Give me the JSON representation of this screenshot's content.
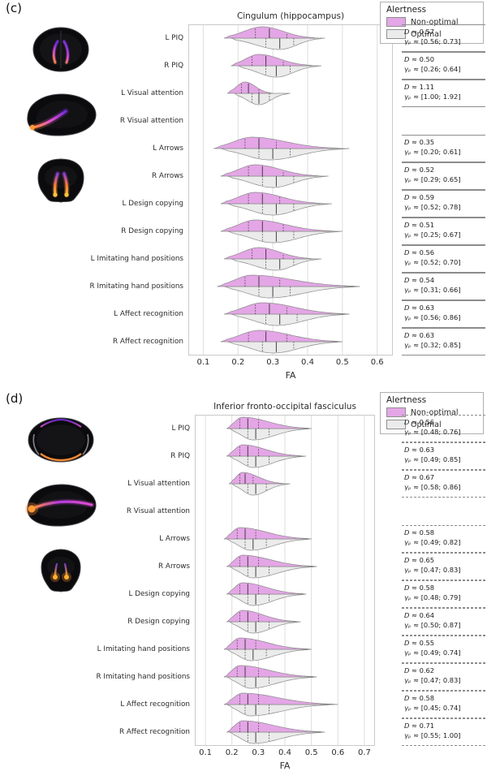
{
  "legend": {
    "title": "Alertness",
    "nonoptimal_label": "Non-optimal",
    "optimal_label": "Optimal"
  },
  "colors": {
    "nonoptimal": "#e4a6e6",
    "optimal": "#ebebeb",
    "violin_edge": "#8a8a8a",
    "grid": "#dedede",
    "tract_orange": "#ff8f35",
    "tract_purple": "#6f2bd8"
  },
  "violin_format": "[min, q1, median, q3, max, mode] in FA units",
  "chart_data": [
    {
      "type": "violin-split",
      "id": "c",
      "panel_label": "(c)",
      "title": "Cingulum (hippocampus)",
      "xlabel": "FA",
      "xlim": [
        0.057,
        0.645
      ],
      "xticks": [
        0.1,
        0.2,
        0.3,
        0.4,
        0.5,
        0.6
      ],
      "brain_views": [
        "axial",
        "sagittal",
        "coronal"
      ],
      "categories": [
        "L PIQ",
        "R PIQ",
        "L Visual attention",
        "R Visual attention",
        "L Arrows",
        "R Arrows",
        "L Design copying",
        "R Design copying",
        "L Imitating hand positions",
        "R Imitating hand positions",
        "L Affect recognition",
        "R Affect recognition"
      ],
      "series": [
        {
          "name": "Non-optimal",
          "violins": [
            [
              0.16,
              0.25,
              0.29,
              0.34,
              0.43,
              0.27
            ],
            [
              0.18,
              0.24,
              0.28,
              0.33,
              0.42,
              0.26
            ],
            [
              0.17,
              0.21,
              0.23,
              0.26,
              0.3,
              0.22
            ],
            null,
            [
              0.13,
              0.22,
              0.26,
              0.31,
              0.5,
              0.24
            ],
            [
              0.15,
              0.23,
              0.27,
              0.33,
              0.44,
              0.25
            ],
            [
              0.15,
              0.23,
              0.27,
              0.32,
              0.45,
              0.25
            ],
            [
              0.15,
              0.23,
              0.27,
              0.33,
              0.48,
              0.25
            ],
            [
              0.16,
              0.24,
              0.28,
              0.33,
              0.42,
              0.26
            ],
            [
              0.14,
              0.22,
              0.26,
              0.32,
              0.55,
              0.24
            ],
            [
              0.16,
              0.25,
              0.29,
              0.34,
              0.52,
              0.27
            ],
            [
              0.15,
              0.23,
              0.28,
              0.34,
              0.5,
              0.26
            ]
          ]
        },
        {
          "name": "Optimal",
          "violins": [
            [
              0.18,
              0.28,
              0.32,
              0.36,
              0.45,
              0.32
            ],
            [
              0.2,
              0.28,
              0.31,
              0.35,
              0.44,
              0.31
            ],
            [
              0.19,
              0.24,
              0.26,
              0.29,
              0.35,
              0.26
            ],
            null,
            [
              0.15,
              0.26,
              0.3,
              0.35,
              0.52,
              0.29
            ],
            [
              0.17,
              0.27,
              0.31,
              0.36,
              0.46,
              0.3
            ],
            [
              0.17,
              0.27,
              0.31,
              0.36,
              0.47,
              0.3
            ],
            [
              0.17,
              0.27,
              0.31,
              0.36,
              0.5,
              0.3
            ],
            [
              0.18,
              0.28,
              0.32,
              0.36,
              0.44,
              0.31
            ],
            [
              0.16,
              0.26,
              0.3,
              0.35,
              0.55,
              0.29
            ],
            [
              0.18,
              0.28,
              0.32,
              0.37,
              0.52,
              0.31
            ],
            [
              0.17,
              0.27,
              0.31,
              0.36,
              0.5,
              0.3
            ]
          ]
        }
      ],
      "stats": [
        {
          "d": "D ≈ 0.57",
          "gp": "γₚ ≈ [0.56; 0.73]"
        },
        {
          "d": "D ≈ 0.50",
          "gp": "γₚ ≈ [0.26; 0.64]"
        },
        {
          "d": "D ≈ 1.11",
          "gp": "γₚ ≈ [1.00; 1.92]"
        },
        null,
        {
          "d": "D ≈ 0.35",
          "gp": "γₚ ≈ [0.20; 0.61]"
        },
        {
          "d": "D ≈ 0.52",
          "gp": "γₚ ≈ [0.29; 0.65]"
        },
        {
          "d": "D ≈ 0.59",
          "gp": "γₚ ≈ [0.52; 0.78]"
        },
        {
          "d": "D ≈ 0.51",
          "gp": "γₚ ≈ [0.25; 0.67]"
        },
        {
          "d": "D ≈ 0.56",
          "gp": "γₚ ≈ [0.52; 0.70]"
        },
        {
          "d": "D ≈ 0.54",
          "gp": "γₚ ≈ [0.31; 0.66]"
        },
        {
          "d": "D ≈ 0.63",
          "gp": "γₚ ≈ [0.56; 0.86]"
        },
        {
          "d": "D ≈ 0.63",
          "gp": "γₚ ≈ [0.32; 0.85]"
        }
      ]
    },
    {
      "type": "violin-split",
      "id": "d",
      "panel_label": "(d)",
      "title": "Inferior fronto-occipital fasciculus",
      "xlabel": "FA",
      "xlim": [
        0.06,
        0.74
      ],
      "xticks": [
        0.1,
        0.2,
        0.3,
        0.4,
        0.5,
        0.6,
        0.7
      ],
      "brain_views": [
        "axial",
        "sagittal",
        "coronal"
      ],
      "categories": [
        "L PIQ",
        "R PIQ",
        "L Visual attention",
        "R Visual attention",
        "L Arrows",
        "R Arrows",
        "L Design copying",
        "R Design copying",
        "L Imitating hand positions",
        "R Imitating hand positions",
        "L Affect recognition",
        "R Affect recognition"
      ],
      "series": [
        {
          "name": "Non-optimal",
          "violins": [
            [
              0.18,
              0.23,
              0.26,
              0.3,
              0.5,
              0.24
            ],
            [
              0.18,
              0.23,
              0.26,
              0.3,
              0.47,
              0.24
            ],
            [
              0.19,
              0.23,
              0.25,
              0.28,
              0.4,
              0.24
            ],
            null,
            [
              0.17,
              0.22,
              0.25,
              0.29,
              0.5,
              0.23
            ],
            [
              0.18,
              0.23,
              0.26,
              0.3,
              0.52,
              0.24
            ],
            [
              0.18,
              0.23,
              0.26,
              0.3,
              0.48,
              0.24
            ],
            [
              0.18,
              0.23,
              0.26,
              0.3,
              0.45,
              0.24
            ],
            [
              0.17,
              0.22,
              0.25,
              0.29,
              0.5,
              0.23
            ],
            [
              0.17,
              0.22,
              0.25,
              0.3,
              0.52,
              0.23
            ],
            [
              0.17,
              0.23,
              0.26,
              0.3,
              0.6,
              0.24
            ],
            [
              0.18,
              0.23,
              0.26,
              0.3,
              0.55,
              0.24
            ]
          ]
        },
        {
          "name": "Optimal",
          "violins": [
            [
              0.19,
              0.26,
              0.29,
              0.34,
              0.5,
              0.28
            ],
            [
              0.19,
              0.26,
              0.29,
              0.34,
              0.48,
              0.28
            ],
            [
              0.2,
              0.26,
              0.29,
              0.33,
              0.42,
              0.28
            ],
            null,
            [
              0.18,
              0.25,
              0.28,
              0.33,
              0.5,
              0.27
            ],
            [
              0.19,
              0.26,
              0.29,
              0.34,
              0.52,
              0.28
            ],
            [
              0.19,
              0.26,
              0.29,
              0.34,
              0.48,
              0.28
            ],
            [
              0.19,
              0.26,
              0.29,
              0.34,
              0.46,
              0.28
            ],
            [
              0.18,
              0.25,
              0.28,
              0.33,
              0.5,
              0.27
            ],
            [
              0.18,
              0.25,
              0.29,
              0.34,
              0.52,
              0.27
            ],
            [
              0.18,
              0.25,
              0.29,
              0.34,
              0.58,
              0.27
            ],
            [
              0.19,
              0.26,
              0.29,
              0.34,
              0.55,
              0.28
            ]
          ]
        }
      ],
      "stats": [
        {
          "d": "D ≈ 0.56",
          "gp": "γₚ ≈ [0.48; 0.76]"
        },
        {
          "d": "D ≈ 0.63",
          "gp": "γₚ ≈ [0.49; 0.85]"
        },
        {
          "d": "D ≈ 0.67",
          "gp": "γₚ ≈ [0.58; 0.86]"
        },
        null,
        {
          "d": "D ≈ 0.58",
          "gp": "γₚ ≈ [0.49; 0.82]"
        },
        {
          "d": "D ≈ 0.65",
          "gp": "γₚ ≈ [0.47; 0.83]"
        },
        {
          "d": "D ≈ 0.58",
          "gp": "γₚ ≈ [0.48; 0.79]"
        },
        {
          "d": "D ≈ 0.64",
          "gp": "γₚ ≈ [0.50; 0.87]"
        },
        {
          "d": "D ≈ 0.55",
          "gp": "γₚ ≈ [0.49; 0.74]"
        },
        {
          "d": "D ≈ 0.62",
          "gp": "γₚ ≈ [0.47; 0.83]"
        },
        {
          "d": "D ≈ 0.58",
          "gp": "γₚ ≈ [0.45; 0.74]"
        },
        {
          "d": "D ≈ 0.71",
          "gp": "γₚ ≈ [0.55; 1.00]"
        }
      ]
    }
  ]
}
